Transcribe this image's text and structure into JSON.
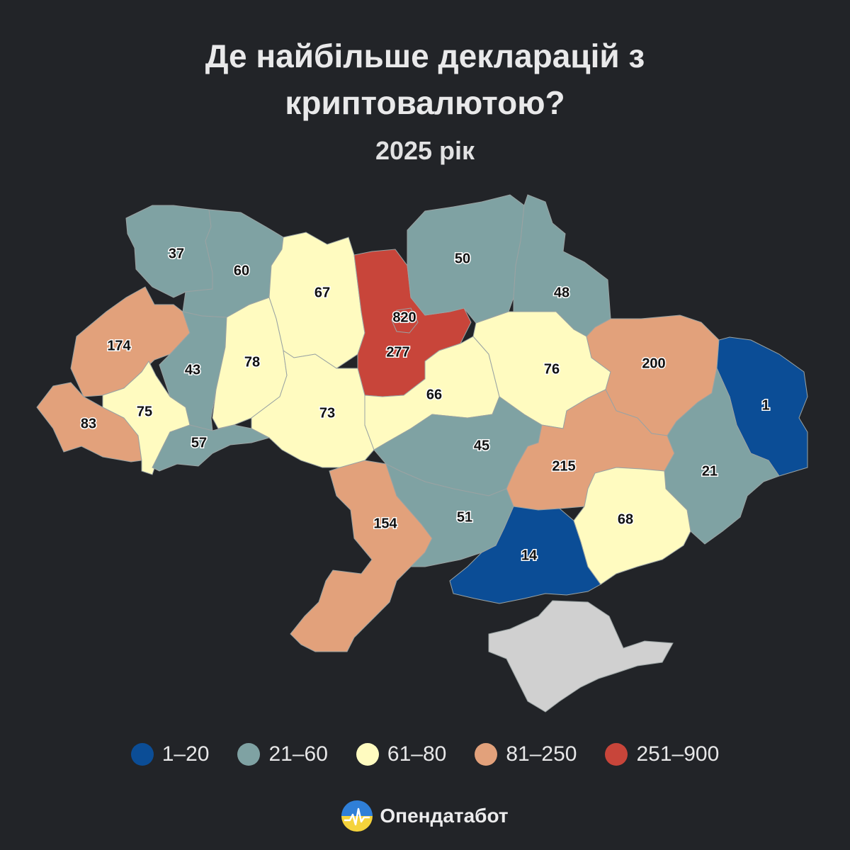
{
  "header": {
    "title": "Де найбільше декларацій з\nкриптовалютою?",
    "subtitle": "2025 рік"
  },
  "colors": {
    "1-20": "#0b4d96",
    "21-60": "#7fa2a3",
    "61-80": "#fffbc0",
    "81-250": "#e2a17b",
    "251-900": "#c8453a",
    "no-data": "#d0d0d0"
  },
  "regions": [
    {
      "id": "volyn",
      "value": "37",
      "bucket": "21-60"
    },
    {
      "id": "rivne",
      "value": "60",
      "bucket": "21-60"
    },
    {
      "id": "zhytomyr",
      "value": "67",
      "bucket": "61-80"
    },
    {
      "id": "kyiv-city",
      "value": "820",
      "bucket": "251-900"
    },
    {
      "id": "kyiv-oblast",
      "value": "277",
      "bucket": "251-900"
    },
    {
      "id": "chernihiv",
      "value": "50",
      "bucket": "21-60"
    },
    {
      "id": "sumy",
      "value": "48",
      "bucket": "21-60"
    },
    {
      "id": "lviv",
      "value": "174",
      "bucket": "81-250"
    },
    {
      "id": "ternopil",
      "value": "43",
      "bucket": "21-60"
    },
    {
      "id": "khmelnytskyi",
      "value": "78",
      "bucket": "61-80"
    },
    {
      "id": "vinnytsia",
      "value": "73",
      "bucket": "61-80"
    },
    {
      "id": "cherkasy",
      "value": "66",
      "bucket": "61-80"
    },
    {
      "id": "poltava",
      "value": "76",
      "bucket": "61-80"
    },
    {
      "id": "kharkiv",
      "value": "200",
      "bucket": "81-250"
    },
    {
      "id": "luhansk",
      "value": "1",
      "bucket": "1-20"
    },
    {
      "id": "zakarpattia",
      "value": "83",
      "bucket": "81-250"
    },
    {
      "id": "ivano-frankivsk",
      "value": "75",
      "bucket": "61-80"
    },
    {
      "id": "chernivtsi",
      "value": "57",
      "bucket": "21-60"
    },
    {
      "id": "kirovohrad",
      "value": "45",
      "bucket": "21-60"
    },
    {
      "id": "dnipropetrovsk",
      "value": "215",
      "bucket": "81-250"
    },
    {
      "id": "donetsk",
      "value": "21",
      "bucket": "21-60"
    },
    {
      "id": "odesa",
      "value": "154",
      "bucket": "81-250"
    },
    {
      "id": "mykolaiv",
      "value": "51",
      "bucket": "21-60"
    },
    {
      "id": "kherson",
      "value": "14",
      "bucket": "1-20"
    },
    {
      "id": "zaporizhzhia",
      "value": "68",
      "bucket": "61-80"
    },
    {
      "id": "crimea",
      "value": "",
      "bucket": "no-data"
    }
  ],
  "legend": [
    {
      "label": "1–20",
      "bucket": "1-20"
    },
    {
      "label": "21–60",
      "bucket": "21-60"
    },
    {
      "label": "61–80",
      "bucket": "61-80"
    },
    {
      "label": "81–250",
      "bucket": "81-250"
    },
    {
      "label": "251–900",
      "bucket": "251-900"
    }
  ],
  "brand": {
    "name": "Опендатабот"
  }
}
